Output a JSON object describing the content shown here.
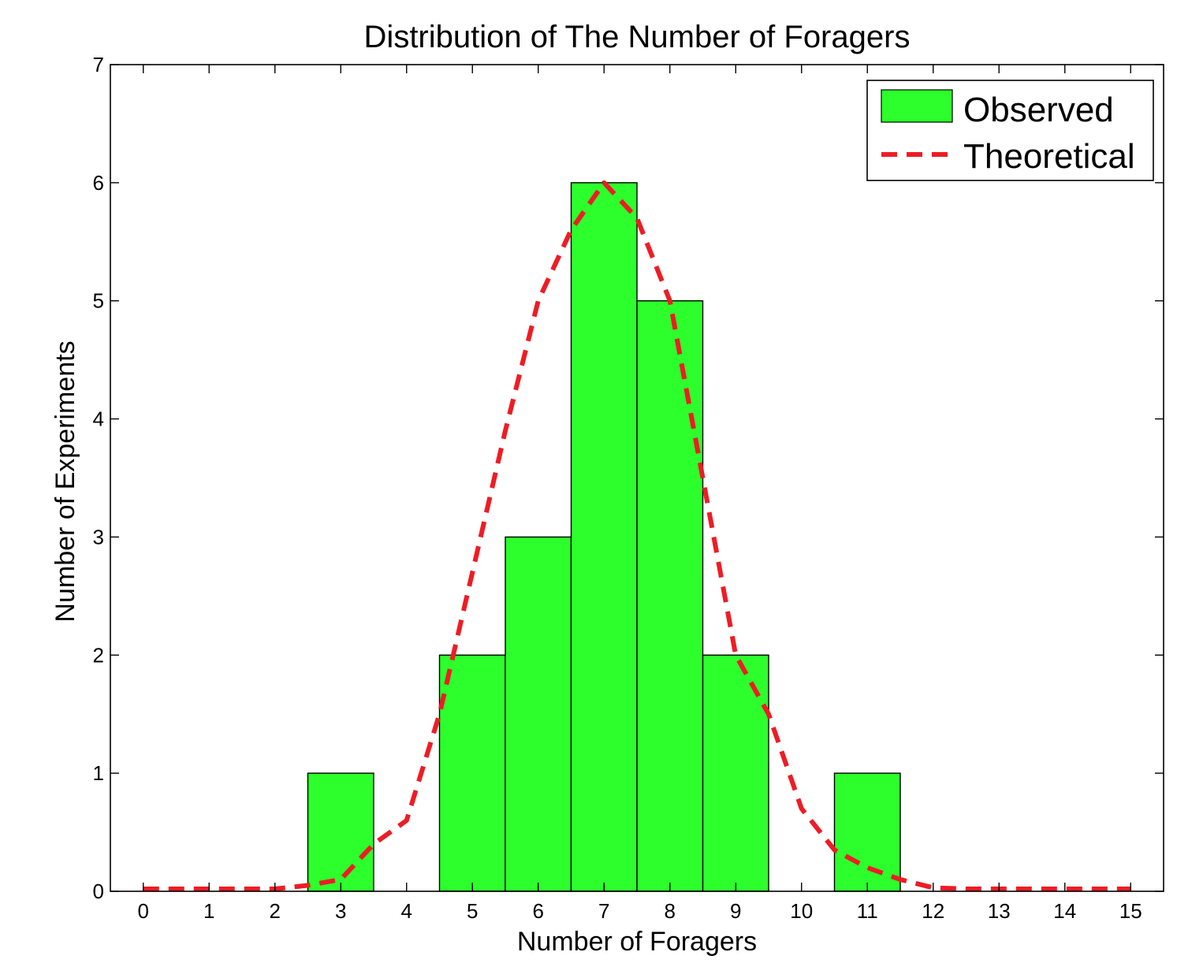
{
  "chart_data": {
    "type": "bar",
    "title": "Distribution of The Number of Foragers",
    "xlabel": "Number of Foragers",
    "ylabel": "Number of Experiments",
    "xlim": [
      -0.5,
      15.5
    ],
    "ylim": [
      0,
      7
    ],
    "xticks": [
      "0",
      "1",
      "2",
      "3",
      "4",
      "5",
      "6",
      "7",
      "8",
      "9",
      "10",
      "11",
      "12",
      "13",
      "14",
      "15"
    ],
    "yticks": [
      "0",
      "1",
      "2",
      "3",
      "4",
      "5",
      "6",
      "7"
    ],
    "grid": false,
    "legend_position": "top-right",
    "series": [
      {
        "name": "Observed",
        "type": "bar",
        "color": "#2cff2c",
        "x": [
          3,
          5,
          6,
          7,
          8,
          9,
          11
        ],
        "values": [
          1,
          2,
          3,
          6,
          5,
          2,
          1
        ]
      },
      {
        "name": "Theoretical",
        "type": "line",
        "style": "dashed",
        "color": "#ee1c24",
        "x": [
          0,
          0.5,
          1,
          1.5,
          2,
          2.5,
          3,
          3.5,
          4,
          4.5,
          5,
          5.5,
          6,
          6.5,
          7,
          7.5,
          8,
          8.5,
          9,
          9.5,
          10,
          10.5,
          11,
          11.5,
          12,
          12.5,
          13,
          13.5,
          14,
          14.5,
          15
        ],
        "values": [
          0.02,
          0.02,
          0.02,
          0.02,
          0.02,
          0.05,
          0.1,
          0.4,
          0.6,
          1.5,
          2.7,
          3.9,
          5.0,
          5.6,
          6.0,
          5.7,
          5.0,
          3.5,
          2.0,
          1.5,
          0.7,
          0.35,
          0.2,
          0.1,
          0.03,
          0.02,
          0.02,
          0.02,
          0.02,
          0.02,
          0.02
        ]
      }
    ]
  }
}
